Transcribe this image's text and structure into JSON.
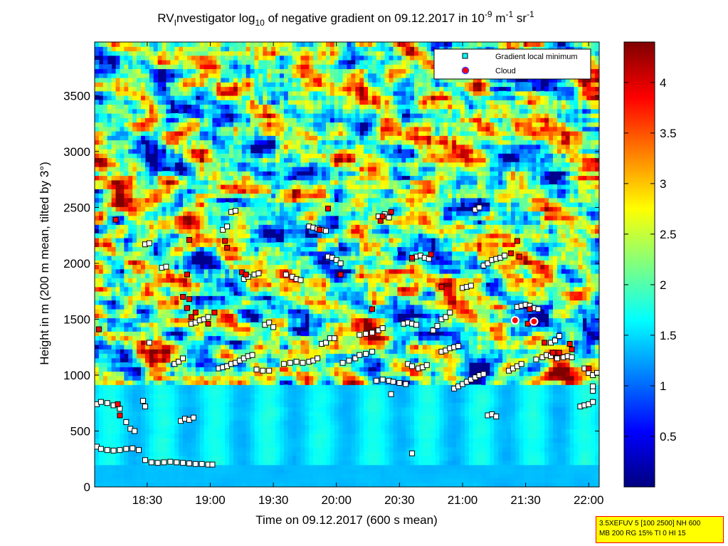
{
  "chart_data": {
    "type": "heatmap",
    "title": {
      "prefix": "RV",
      "sub1": "I",
      "part2": "nvestigator log",
      "sub2": "10",
      "part3": " of negative gradient on 09.12.2017 in 10",
      "sup1": "-9",
      "part4": " m",
      "sup2": "-1",
      "part5": " sr",
      "sup3": "-1"
    },
    "xlabel": "Time on 09.12.2017 (600 s mean)",
    "ylabel": "Height in m (200 m mean, tilted by 3°)",
    "xlim_minutes": [
      1085,
      1325
    ],
    "x_ticks": [
      {
        "label": "18:30",
        "minutes": 1110
      },
      {
        "label": "19:00",
        "minutes": 1140
      },
      {
        "label": "19:30",
        "minutes": 1170
      },
      {
        "label": "20:00",
        "minutes": 1200
      },
      {
        "label": "20:30",
        "minutes": 1230
      },
      {
        "label": "21:00",
        "minutes": 1260
      },
      {
        "label": "21:30",
        "minutes": 1290
      },
      {
        "label": "22:00",
        "minutes": 1320
      }
    ],
    "ylim": [
      0,
      3980
    ],
    "y_ticks": [
      0,
      500,
      1000,
      1500,
      2000,
      2500,
      3000,
      3500
    ],
    "colorbar": {
      "range": [
        0,
        4.4
      ],
      "ticks": [
        "0.5",
        "1",
        "1.5",
        "2",
        "2.5",
        "3",
        "3.5",
        "4"
      ],
      "colormap": "jet"
    },
    "legend": {
      "position": "top-right",
      "entries": [
        {
          "label": "Gradient local minimum",
          "marker": "square",
          "color": "#00ffff"
        },
        {
          "label": "Cloud",
          "marker": "circle",
          "color": "#ff0000"
        }
      ]
    },
    "series": [
      {
        "name": "Gradient local minimum",
        "points": [
          [
            1086,
            360
          ],
          [
            1088,
            340
          ],
          [
            1091,
            330
          ],
          [
            1094,
            325
          ],
          [
            1097,
            330
          ],
          [
            1100,
            340
          ],
          [
            1103,
            345
          ],
          [
            1106,
            330
          ],
          [
            1109,
            240
          ],
          [
            1112,
            220
          ],
          [
            1115,
            215
          ],
          [
            1118,
            220
          ],
          [
            1121,
            225
          ],
          [
            1124,
            220
          ],
          [
            1127,
            215
          ],
          [
            1130,
            210
          ],
          [
            1133,
            205
          ],
          [
            1136,
            205
          ],
          [
            1139,
            200
          ],
          [
            1141,
            200
          ],
          [
            1086,
            740
          ],
          [
            1088,
            760
          ],
          [
            1091,
            750
          ],
          [
            1094,
            730
          ],
          [
            1097,
            700
          ],
          [
            1100,
            580
          ],
          [
            1102,
            520
          ],
          [
            1104,
            500
          ],
          [
            1108,
            770
          ],
          [
            1109,
            720
          ],
          [
            1126,
            590
          ],
          [
            1128,
            610
          ],
          [
            1130,
            600
          ],
          [
            1132,
            620
          ],
          [
            1109,
            2170
          ],
          [
            1111,
            2180
          ],
          [
            1117,
            1960
          ],
          [
            1119,
            1970
          ],
          [
            1111,
            1290
          ],
          [
            1123,
            1100
          ],
          [
            1125,
            1120
          ],
          [
            1127,
            1150
          ],
          [
            1131,
            1460
          ],
          [
            1133,
            1470
          ],
          [
            1135,
            1490
          ],
          [
            1137,
            1500
          ],
          [
            1139,
            1520
          ],
          [
            1144,
            1060
          ],
          [
            1146,
            1070
          ],
          [
            1148,
            1080
          ],
          [
            1150,
            1100
          ],
          [
            1152,
            1110
          ],
          [
            1154,
            1130
          ],
          [
            1156,
            1150
          ],
          [
            1158,
            1170
          ],
          [
            1160,
            1180
          ],
          [
            1146,
            2300
          ],
          [
            1148,
            2330
          ],
          [
            1150,
            2460
          ],
          [
            1152,
            2470
          ],
          [
            1156,
            1860
          ],
          [
            1158,
            1880
          ],
          [
            1161,
            1900
          ],
          [
            1163,
            1910
          ],
          [
            1162,
            1050
          ],
          [
            1165,
            1040
          ],
          [
            1168,
            1040
          ],
          [
            1166,
            1450
          ],
          [
            1168,
            1470
          ],
          [
            1170,
            1430
          ],
          [
            1175,
            1100
          ],
          [
            1178,
            1110
          ],
          [
            1181,
            1120
          ],
          [
            1184,
            1110
          ],
          [
            1187,
            1120
          ],
          [
            1189,
            1130
          ],
          [
            1191,
            1150
          ],
          [
            1176,
            1900
          ],
          [
            1179,
            1880
          ],
          [
            1181,
            1860
          ],
          [
            1183,
            1850
          ],
          [
            1187,
            2330
          ],
          [
            1189,
            2320
          ],
          [
            1191,
            2310
          ],
          [
            1193,
            2300
          ],
          [
            1195,
            2290
          ],
          [
            1193,
            1280
          ],
          [
            1195,
            1290
          ],
          [
            1197,
            1330
          ],
          [
            1199,
            1330
          ],
          [
            1196,
            2060
          ],
          [
            1198,
            2050
          ],
          [
            1200,
            2030
          ],
          [
            1202,
            2000
          ],
          [
            1203,
            1110
          ],
          [
            1206,
            1130
          ],
          [
            1209,
            1150
          ],
          [
            1211,
            1180
          ],
          [
            1214,
            1190
          ],
          [
            1217,
            1210
          ],
          [
            1211,
            1360
          ],
          [
            1214,
            1370
          ],
          [
            1217,
            1380
          ],
          [
            1220,
            1400
          ],
          [
            1222,
            1420
          ],
          [
            1219,
            950
          ],
          [
            1222,
            960
          ],
          [
            1225,
            950
          ],
          [
            1227,
            940
          ],
          [
            1230,
            930
          ],
          [
            1233,
            920
          ],
          [
            1220,
            2420
          ],
          [
            1223,
            2440
          ],
          [
            1225,
            2410
          ],
          [
            1234,
            1100
          ],
          [
            1236,
            1080
          ],
          [
            1239,
            1060
          ],
          [
            1241,
            1070
          ],
          [
            1243,
            1090
          ],
          [
            1232,
            1460
          ],
          [
            1234,
            1470
          ],
          [
            1236,
            1460
          ],
          [
            1238,
            1450
          ],
          [
            1236,
            2040
          ],
          [
            1238,
            2060
          ],
          [
            1240,
            2070
          ],
          [
            1242,
            2050
          ],
          [
            1244,
            2040
          ],
          [
            1246,
            1400
          ],
          [
            1248,
            1440
          ],
          [
            1250,
            1500
          ],
          [
            1252,
            1520
          ],
          [
            1254,
            1560
          ],
          [
            1250,
            1210
          ],
          [
            1252,
            1220
          ],
          [
            1254,
            1240
          ],
          [
            1256,
            1250
          ],
          [
            1258,
            1260
          ],
          [
            1256,
            880
          ],
          [
            1258,
            900
          ],
          [
            1260,
            920
          ],
          [
            1262,
            940
          ],
          [
            1264,
            960
          ],
          [
            1266,
            980
          ],
          [
            1268,
            1000
          ],
          [
            1270,
            1010
          ],
          [
            1260,
            1780
          ],
          [
            1262,
            1790
          ],
          [
            1264,
            1800
          ],
          [
            1270,
            1980
          ],
          [
            1272,
            2000
          ],
          [
            1274,
            2030
          ],
          [
            1276,
            2040
          ],
          [
            1278,
            2050
          ],
          [
            1280,
            2070
          ],
          [
            1266,
            2480
          ],
          [
            1268,
            2500
          ],
          [
            1272,
            640
          ],
          [
            1274,
            650
          ],
          [
            1276,
            630
          ],
          [
            1282,
            1040
          ],
          [
            1284,
            1060
          ],
          [
            1286,
            1080
          ],
          [
            1288,
            1100
          ],
          [
            1286,
            1610
          ],
          [
            1288,
            1620
          ],
          [
            1290,
            1630
          ],
          [
            1292,
            1620
          ],
          [
            1294,
            1600
          ],
          [
            1296,
            1590
          ],
          [
            1295,
            1140
          ],
          [
            1298,
            1160
          ],
          [
            1300,
            1180
          ],
          [
            1302,
            1170
          ],
          [
            1305,
            1150
          ],
          [
            1308,
            1160
          ],
          [
            1310,
            1170
          ],
          [
            1312,
            1160
          ],
          [
            1302,
            1290
          ],
          [
            1304,
            1310
          ],
          [
            1306,
            1350
          ],
          [
            1318,
            1060
          ],
          [
            1320,
            1020
          ],
          [
            1322,
            1000
          ],
          [
            1324,
            1020
          ],
          [
            1316,
            720
          ],
          [
            1318,
            730
          ],
          [
            1320,
            740
          ],
          [
            1322,
            760
          ],
          [
            1322,
            860
          ],
          [
            1322,
            900
          ],
          [
            1236,
            300
          ],
          [
            1226,
            830
          ]
        ]
      },
      {
        "name": "Red gradient minima",
        "points": [
          [
            1087,
            1410
          ],
          [
            1096,
            740
          ],
          [
            1095,
            2390
          ],
          [
            1097,
            640
          ],
          [
            1127,
            1700
          ],
          [
            1129,
            1600
          ],
          [
            1131,
            1520
          ],
          [
            1133,
            1560
          ],
          [
            1130,
            1680
          ],
          [
            1139,
            1460
          ],
          [
            1142,
            1560
          ],
          [
            1147,
            2200
          ],
          [
            1148,
            2140
          ],
          [
            1155,
            1920
          ],
          [
            1157,
            1900
          ],
          [
            1192,
            2300
          ],
          [
            1196,
            2490
          ],
          [
            1202,
            1900
          ],
          [
            1217,
            1590
          ],
          [
            1221,
            2380
          ],
          [
            1222,
            2420
          ],
          [
            1226,
            2460
          ],
          [
            1236,
            2050
          ],
          [
            1245,
            2080
          ],
          [
            1250,
            1790
          ],
          [
            1283,
            2090
          ],
          [
            1286,
            2200
          ],
          [
            1287,
            2060
          ],
          [
            1291,
            1460
          ],
          [
            1292,
            1590
          ],
          [
            1299,
            1290
          ],
          [
            1303,
            1200
          ],
          [
            1306,
            1200
          ],
          [
            1311,
            1280
          ],
          [
            1312,
            1230
          ],
          [
            1320,
            1060
          ],
          [
            1129,
            1900
          ],
          [
            1130,
            2210
          ]
        ]
      },
      {
        "name": "Cloud",
        "points": [
          [
            1285,
            1490
          ],
          [
            1294,
            1480
          ]
        ]
      }
    ]
  },
  "info_box": {
    "line1": "3.5XEFUV 5 [100 2500] NH 600",
    "line2": "MB 200 RG 15% TI 0 HI 15"
  }
}
